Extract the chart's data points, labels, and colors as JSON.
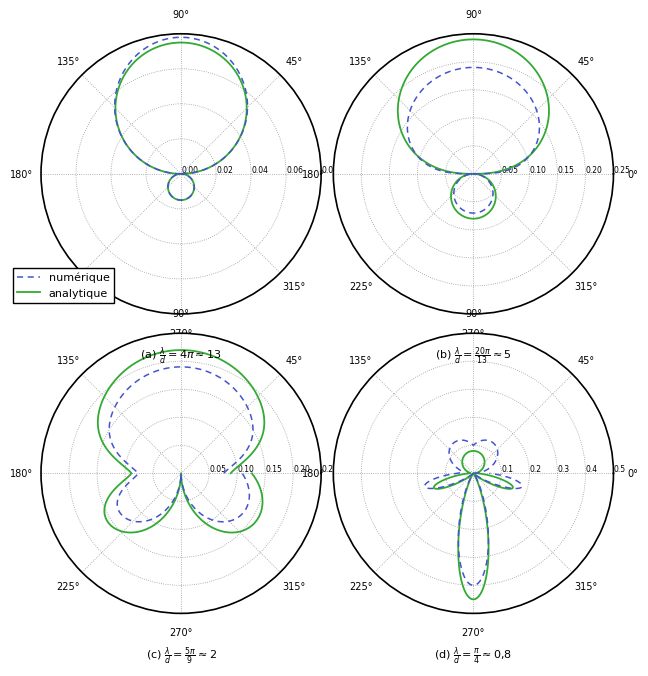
{
  "subplots": [
    {
      "label": "(a) $\\frac{\\lambda}{d} = 4\\pi \\approx 13$",
      "rmax": 0.08,
      "rticks": [
        0.0,
        0.02,
        0.04,
        0.06,
        0.08
      ],
      "rtick_labels": [
        "0.00",
        "0.02",
        "0.04",
        "0.06",
        "0.08"
      ]
    },
    {
      "label": "(b) $\\frac{\\lambda}{d} = \\frac{20\\pi}{13} \\approx 5$",
      "rmax": 0.25,
      "rticks": [
        0.05,
        0.1,
        0.15,
        0.2,
        0.25
      ],
      "rtick_labels": [
        "0.05",
        "0.10",
        "0.15",
        "0.20",
        "0.25"
      ]
    },
    {
      "label": "(c) $\\frac{\\lambda}{d} = \\frac{5\\pi}{9} \\approx 2$",
      "rmax": 0.25,
      "rticks": [
        0.05,
        0.1,
        0.15,
        0.2,
        0.25
      ],
      "rtick_labels": [
        "0.05",
        "0.10",
        "0.15",
        "0.20",
        "0.25"
      ]
    },
    {
      "label": "(d) $\\frac{\\lambda}{d} = \\frac{\\pi}{4} \\approx 0{,}8$",
      "rmax": 0.5,
      "rticks": [
        0.1,
        0.2,
        0.3,
        0.4,
        0.5
      ],
      "rtick_labels": [
        "0.1",
        "0.2",
        "0.3",
        "0.4",
        "0.5"
      ]
    }
  ],
  "numeric_color": "#4455cc",
  "analytic_color": "#33aa33",
  "legend_labels": [
    "numérique",
    "analytique"
  ],
  "thetagrids": [
    0,
    45,
    90,
    135,
    180,
    225,
    270,
    315
  ],
  "thetagrid_labels": [
    "0°",
    "45°",
    "90°",
    "135°",
    "180°",
    "225°",
    "270°",
    "315°"
  ]
}
